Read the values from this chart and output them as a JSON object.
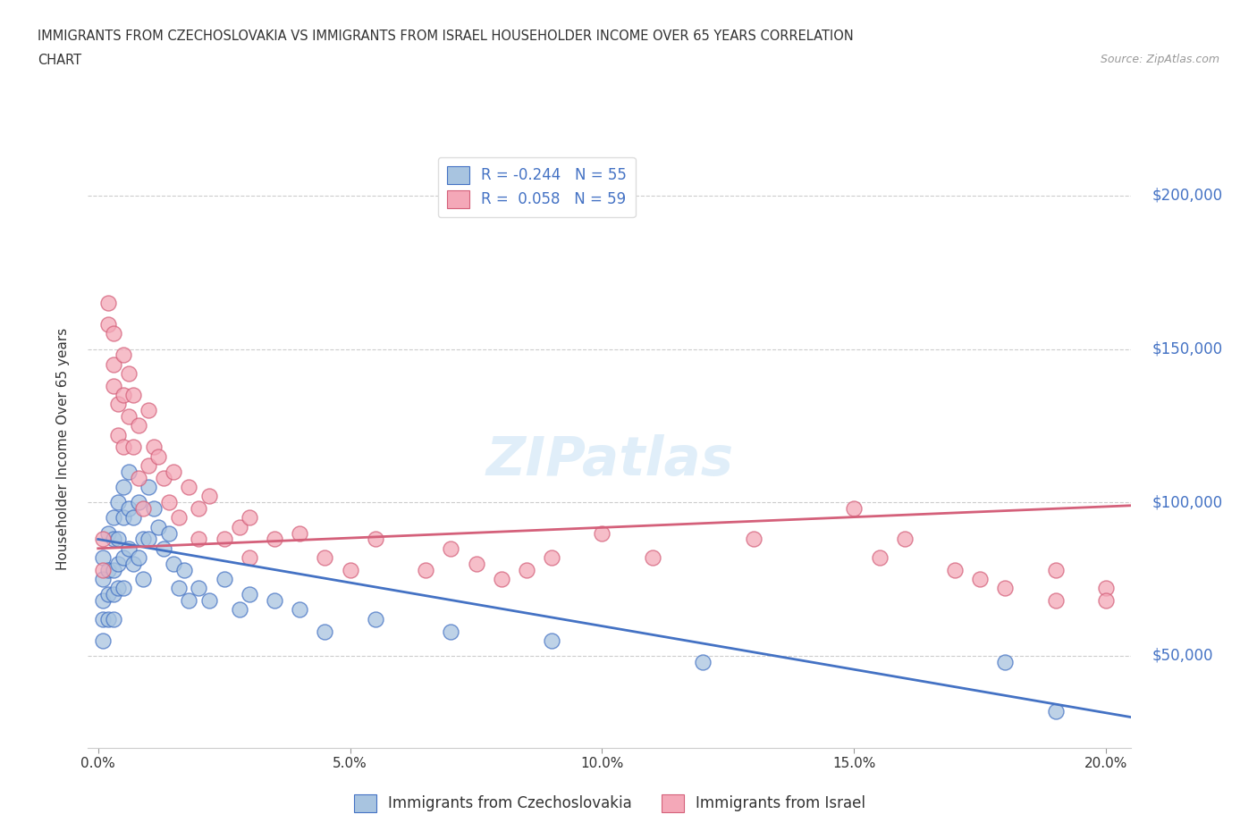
{
  "title_line1": "IMMIGRANTS FROM CZECHOSLOVAKIA VS IMMIGRANTS FROM ISRAEL HOUSEHOLDER INCOME OVER 65 YEARS CORRELATION",
  "title_line2": "CHART",
  "source": "Source: ZipAtlas.com",
  "ylabel": "Householder Income Over 65 years",
  "r_czech": -0.244,
  "n_czech": 55,
  "r_israel": 0.058,
  "n_israel": 59,
  "legend_label_czech": "Immigrants from Czechoslovakia",
  "legend_label_israel": "Immigrants from Israel",
  "color_czech": "#a8c4e0",
  "color_israel": "#f4a8b8",
  "line_color_czech": "#4472c4",
  "line_color_israel": "#d4607a",
  "ytick_labels": [
    "$50,000",
    "$100,000",
    "$150,000",
    "$200,000"
  ],
  "ytick_values": [
    50000,
    100000,
    150000,
    200000
  ],
  "xtick_labels": [
    "0.0%",
    "5.0%",
    "10.0%",
    "15.0%",
    "20.0%"
  ],
  "xtick_values": [
    0.0,
    0.05,
    0.1,
    0.15,
    0.2
  ],
  "xlim": [
    -0.002,
    0.205
  ],
  "ylim": [
    20000,
    215000
  ],
  "czech_x": [
    0.001,
    0.001,
    0.001,
    0.001,
    0.001,
    0.002,
    0.002,
    0.002,
    0.002,
    0.003,
    0.003,
    0.003,
    0.003,
    0.003,
    0.004,
    0.004,
    0.004,
    0.004,
    0.005,
    0.005,
    0.005,
    0.005,
    0.006,
    0.006,
    0.006,
    0.007,
    0.007,
    0.008,
    0.008,
    0.009,
    0.009,
    0.01,
    0.01,
    0.011,
    0.012,
    0.013,
    0.014,
    0.015,
    0.016,
    0.017,
    0.018,
    0.02,
    0.022,
    0.025,
    0.028,
    0.03,
    0.035,
    0.04,
    0.045,
    0.055,
    0.07,
    0.09,
    0.12,
    0.18,
    0.19
  ],
  "czech_y": [
    82000,
    75000,
    68000,
    62000,
    55000,
    90000,
    78000,
    70000,
    62000,
    95000,
    88000,
    78000,
    70000,
    62000,
    100000,
    88000,
    80000,
    72000,
    105000,
    95000,
    82000,
    72000,
    110000,
    98000,
    85000,
    95000,
    80000,
    100000,
    82000,
    88000,
    75000,
    105000,
    88000,
    98000,
    92000,
    85000,
    90000,
    80000,
    72000,
    78000,
    68000,
    72000,
    68000,
    75000,
    65000,
    70000,
    68000,
    65000,
    58000,
    62000,
    58000,
    55000,
    48000,
    48000,
    32000
  ],
  "israel_x": [
    0.001,
    0.001,
    0.002,
    0.002,
    0.003,
    0.003,
    0.003,
    0.004,
    0.004,
    0.005,
    0.005,
    0.005,
    0.006,
    0.006,
    0.007,
    0.007,
    0.008,
    0.008,
    0.009,
    0.01,
    0.01,
    0.011,
    0.012,
    0.013,
    0.014,
    0.015,
    0.016,
    0.018,
    0.02,
    0.02,
    0.022,
    0.025,
    0.028,
    0.03,
    0.03,
    0.035,
    0.04,
    0.045,
    0.05,
    0.055,
    0.065,
    0.07,
    0.075,
    0.08,
    0.085,
    0.09,
    0.1,
    0.11,
    0.13,
    0.15,
    0.155,
    0.16,
    0.17,
    0.175,
    0.18,
    0.19,
    0.19,
    0.2,
    0.2
  ],
  "israel_y": [
    88000,
    78000,
    165000,
    158000,
    155000,
    145000,
    138000,
    132000,
    122000,
    148000,
    135000,
    118000,
    142000,
    128000,
    135000,
    118000,
    125000,
    108000,
    98000,
    130000,
    112000,
    118000,
    115000,
    108000,
    100000,
    110000,
    95000,
    105000,
    98000,
    88000,
    102000,
    88000,
    92000,
    95000,
    82000,
    88000,
    90000,
    82000,
    78000,
    88000,
    78000,
    85000,
    80000,
    75000,
    78000,
    82000,
    90000,
    82000,
    88000,
    98000,
    82000,
    88000,
    78000,
    75000,
    72000,
    68000,
    78000,
    72000,
    68000
  ],
  "czech_line_x0": 0.0,
  "czech_line_y0": 88000,
  "czech_line_x1": 0.205,
  "czech_line_y1": 30000,
  "israel_line_x0": 0.0,
  "israel_line_y0": 85000,
  "israel_line_x1": 0.205,
  "israel_line_y1": 99000
}
